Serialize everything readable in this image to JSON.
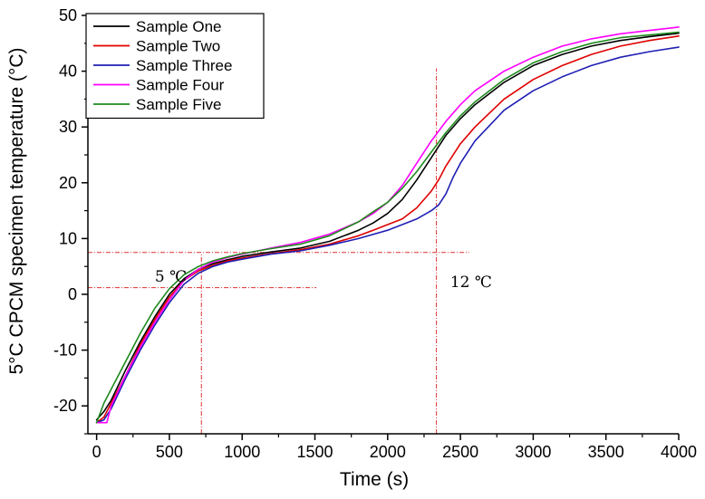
{
  "chart_data": {
    "type": "line",
    "xlabel": "Time (s)",
    "ylabel": "5°C CPCM specimen temperature (°C)",
    "xlim": [
      -60,
      4000
    ],
    "ylim": [
      -25,
      50
    ],
    "x_ticks": [
      0,
      500,
      1000,
      1500,
      2000,
      2500,
      3000,
      3500,
      4000
    ],
    "y_ticks": [
      -20,
      -10,
      0,
      10,
      20,
      30,
      40,
      50
    ],
    "grid": false,
    "legend_position": "top-left",
    "series": [
      {
        "name": "Sample One",
        "color": "#000000",
        "x": [
          0,
          50,
          100,
          200,
          300,
          400,
          500,
          600,
          700,
          800,
          900,
          1000,
          1200,
          1400,
          1600,
          1800,
          1900,
          2000,
          2100,
          2200,
          2300,
          2400,
          2500,
          2600,
          2800,
          3000,
          3200,
          3400,
          3600,
          3800,
          4000
        ],
        "y": [
          -22.5,
          -21,
          -19,
          -13.5,
          -8.5,
          -4,
          0,
          2.8,
          4.5,
          5.5,
          6.2,
          6.8,
          7.6,
          8.3,
          9.5,
          11.5,
          12.8,
          14.5,
          17,
          20.5,
          24.5,
          28.5,
          31.5,
          34,
          38,
          41,
          43,
          44.5,
          45.5,
          46.2,
          46.8
        ]
      },
      {
        "name": "Sample Two",
        "color": "#e00000",
        "x": [
          0,
          50,
          100,
          200,
          300,
          400,
          500,
          600,
          700,
          800,
          900,
          1000,
          1200,
          1400,
          1600,
          1800,
          1900,
          2000,
          2100,
          2200,
          2300,
          2350,
          2400,
          2500,
          2600,
          2700,
          2800,
          3000,
          3200,
          3400,
          3600,
          3800,
          4000
        ],
        "y": [
          -23,
          -22,
          -19.5,
          -14.5,
          -9,
          -4.5,
          -0.5,
          2.5,
          4.2,
          5.2,
          6,
          6.5,
          7.3,
          8,
          9,
          10.5,
          11.5,
          12.5,
          13.5,
          15.5,
          18.5,
          20.5,
          23,
          27,
          30,
          32.5,
          35,
          38.5,
          41,
          43,
          44.5,
          45.5,
          46.3
        ]
      },
      {
        "name": "Sample Three",
        "color": "#1f1fb4",
        "x": [
          0,
          50,
          100,
          200,
          300,
          400,
          500,
          600,
          700,
          800,
          900,
          1000,
          1200,
          1400,
          1600,
          1800,
          2000,
          2100,
          2200,
          2300,
          2350,
          2400,
          2450,
          2500,
          2600,
          2800,
          3000,
          3200,
          3400,
          3600,
          3800,
          4000
        ],
        "y": [
          -23,
          -22.5,
          -20.5,
          -15,
          -10,
          -5.5,
          -1.5,
          1.8,
          3.8,
          5,
          5.8,
          6.3,
          7.2,
          7.8,
          8.8,
          10,
          11.5,
          12.5,
          13.5,
          15,
          16,
          18,
          21,
          23.5,
          27.5,
          33,
          36.5,
          39,
          41,
          42.5,
          43.5,
          44.3
        ]
      },
      {
        "name": "Sample Four",
        "color": "#ff00ff",
        "x": [
          0,
          50,
          70,
          100,
          200,
          300,
          400,
          500,
          600,
          700,
          800,
          900,
          1000,
          1200,
          1400,
          1600,
          1800,
          1900,
          2000,
          2100,
          2200,
          2300,
          2400,
          2500,
          2600,
          2800,
          3000,
          3200,
          3400,
          3600,
          3800,
          4000
        ],
        "y": [
          -23,
          -23,
          -23,
          -20,
          -14.5,
          -9.5,
          -5,
          -1,
          2.5,
          4.5,
          5.8,
          6.6,
          7.2,
          8.3,
          9.3,
          10.8,
          13,
          14.5,
          16.5,
          19.5,
          23.5,
          27.5,
          31,
          34,
          36.5,
          40,
          42.5,
          44.5,
          45.8,
          46.7,
          47.3,
          47.9
        ]
      },
      {
        "name": "Sample Five",
        "color": "#1e8a1e",
        "x": [
          0,
          50,
          100,
          200,
          300,
          400,
          500,
          600,
          700,
          800,
          900,
          1000,
          1200,
          1400,
          1600,
          1800,
          1900,
          2000,
          2100,
          2200,
          2300,
          2400,
          2500,
          2600,
          2800,
          3000,
          3200,
          3400,
          3600,
          3800,
          4000
        ],
        "y": [
          -23,
          -19.5,
          -17,
          -12,
          -7,
          -2.5,
          1,
          3.5,
          5,
          6,
          6.7,
          7.3,
          8.2,
          9,
          10.5,
          13,
          14.8,
          16.5,
          19,
          22,
          25.5,
          29,
          32,
          34.5,
          38.5,
          41.5,
          43.5,
          45,
          46,
          46.5,
          47
        ]
      }
    ],
    "reference_lines": [
      {
        "orientation": "horizontal",
        "y": 7.5,
        "x_from": -60,
        "x_to": 2560
      },
      {
        "orientation": "horizontal",
        "y": 1.2,
        "x_from": -60,
        "x_to": 1510
      },
      {
        "orientation": "vertical",
        "x": 720,
        "y_from": -25,
        "y_to": 7.5
      },
      {
        "orientation": "vertical",
        "x": 2335,
        "y_from": -25,
        "y_to": 40.5
      }
    ],
    "reference_color": "#e03030",
    "annotations": [
      {
        "text": "5 ℃",
        "x": 400,
        "y": 2.3
      },
      {
        "text": "12 ℃",
        "x": 2430,
        "y": 1.3
      }
    ]
  }
}
